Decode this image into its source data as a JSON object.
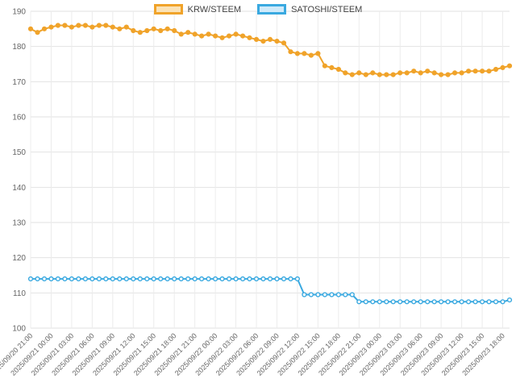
{
  "legend": [
    {
      "label": "KRW/STEEM",
      "color": "#f0a32a",
      "fill": "#fbe2b5"
    },
    {
      "label": "SATOSHI/STEEM",
      "color": "#3aa9e0",
      "fill": "#cfeafa"
    }
  ],
  "chart_data": {
    "type": "line",
    "title": "",
    "xlabel": "",
    "ylabel": "",
    "ylim": [
      100,
      190
    ],
    "ytick_step": 10,
    "tick_every": 3,
    "grid": true,
    "legend_position": "top",
    "x": [
      "2025/09/20 21:00",
      "2025/09/20 22:00",
      "2025/09/20 23:00",
      "2025/09/21 00:00",
      "2025/09/21 01:00",
      "2025/09/21 02:00",
      "2025/09/21 03:00",
      "2025/09/21 04:00",
      "2025/09/21 05:00",
      "2025/09/21 06:00",
      "2025/09/21 07:00",
      "2025/09/21 08:00",
      "2025/09/21 09:00",
      "2025/09/21 10:00",
      "2025/09/21 11:00",
      "2025/09/21 12:00",
      "2025/09/21 13:00",
      "2025/09/21 14:00",
      "2025/09/21 15:00",
      "2025/09/21 16:00",
      "2025/09/21 17:00",
      "2025/09/21 18:00",
      "2025/09/21 19:00",
      "2025/09/21 20:00",
      "2025/09/21 21:00",
      "2025/09/21 22:00",
      "2025/09/21 23:00",
      "2025/09/22 00:00",
      "2025/09/22 01:00",
      "2025/09/22 02:00",
      "2025/09/22 03:00",
      "2025/09/22 04:00",
      "2025/09/22 05:00",
      "2025/09/22 06:00",
      "2025/09/22 07:00",
      "2025/09/22 08:00",
      "2025/09/22 09:00",
      "2025/09/22 10:00",
      "2025/09/22 11:00",
      "2025/09/22 12:00",
      "2025/09/22 13:00",
      "2025/09/22 14:00",
      "2025/09/22 15:00",
      "2025/09/22 16:00",
      "2025/09/22 17:00",
      "2025/09/22 18:00",
      "2025/09/22 19:00",
      "2025/09/22 20:00",
      "2025/09/22 21:00",
      "2025/09/22 22:00",
      "2025/09/22 23:00",
      "2025/09/23 00:00",
      "2025/09/23 01:00",
      "2025/09/23 02:00",
      "2025/09/23 03:00",
      "2025/09/23 04:00",
      "2025/09/23 05:00",
      "2025/09/23 06:00",
      "2025/09/23 07:00",
      "2025/09/23 08:00",
      "2025/09/23 09:00",
      "2025/09/23 10:00",
      "2025/09/23 11:00",
      "2025/09/23 12:00",
      "2025/09/23 13:00",
      "2025/09/23 14:00",
      "2025/09/23 15:00",
      "2025/09/23 16:00",
      "2025/09/23 17:00",
      "2025/09/23 18:00",
      "2025/09/23 19:00"
    ],
    "series": [
      {
        "name": "KRW/STEEM",
        "color": "#f0a32a",
        "marker_fill": "#f0a32a",
        "values": [
          185,
          184,
          185,
          185.5,
          186,
          186,
          185.5,
          186,
          186,
          185.5,
          186,
          186,
          185.5,
          185,
          185.5,
          184.5,
          184,
          184.5,
          185,
          184.5,
          185,
          184.5,
          183.5,
          184,
          183.5,
          183,
          183.5,
          183,
          182.5,
          183,
          183.5,
          183,
          182.5,
          182,
          181.5,
          182,
          181.5,
          181,
          178.5,
          178,
          178,
          177.5,
          178,
          174.5,
          174,
          173.5,
          172.5,
          172,
          172.5,
          172,
          172.5,
          172,
          172,
          172,
          172.5,
          172.5,
          173,
          172.5,
          173,
          172.5,
          172,
          172,
          172.5,
          172.5,
          173,
          173,
          173,
          173,
          173.5,
          174,
          174.5
        ]
      },
      {
        "name": "SATOSHI/STEEM",
        "color": "#3aa9e0",
        "marker_fill": "#ffffff",
        "values": [
          114,
          114,
          114,
          114,
          114,
          114,
          114,
          114,
          114,
          114,
          114,
          114,
          114,
          114,
          114,
          114,
          114,
          114,
          114,
          114,
          114,
          114,
          114,
          114,
          114,
          114,
          114,
          114,
          114,
          114,
          114,
          114,
          114,
          114,
          114,
          114,
          114,
          114,
          114,
          114,
          109.5,
          109.5,
          109.5,
          109.5,
          109.5,
          109.5,
          109.5,
          109.5,
          107.5,
          107.5,
          107.5,
          107.5,
          107.5,
          107.5,
          107.5,
          107.5,
          107.5,
          107.5,
          107.5,
          107.5,
          107.5,
          107.5,
          107.5,
          107.5,
          107.5,
          107.5,
          107.5,
          107.5,
          107.5,
          107.5,
          108
        ]
      }
    ]
  }
}
